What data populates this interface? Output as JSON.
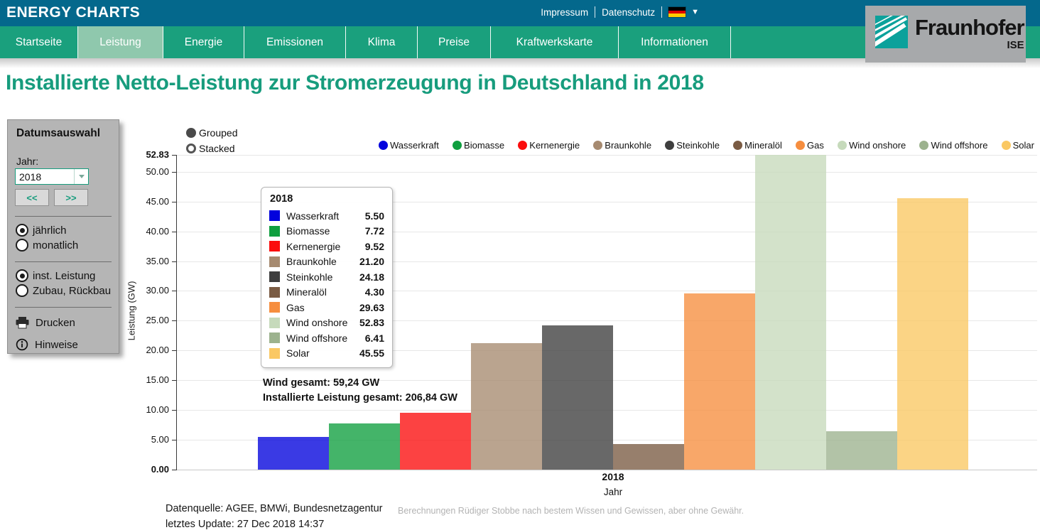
{
  "header": {
    "brand": "ENERGY CHARTS",
    "links": [
      "Impressum",
      "Datenschutz"
    ],
    "language_flag": "german-flag"
  },
  "nav": {
    "tabs": [
      {
        "label": "Startseite",
        "active": false
      },
      {
        "label": "Leistung",
        "active": true
      },
      {
        "label": "Energie",
        "active": false
      },
      {
        "label": "Emissionen",
        "active": false
      },
      {
        "label": "Klima",
        "active": false
      },
      {
        "label": "Preise",
        "active": false
      },
      {
        "label": "Kraftwerkskarte",
        "active": false
      },
      {
        "label": "Informationen",
        "active": false
      }
    ]
  },
  "logo": {
    "brand": "Fraunhofer",
    "institute": "ISE"
  },
  "page_title": "Installierte Netto-Leistung zur Stromerzeugung in Deutschland in 2018",
  "sidebar": {
    "title": "Datumsauswahl",
    "year_label": "Jahr:",
    "year_value": "2018",
    "prev_label": "<<",
    "next_label": ">>",
    "period_options": [
      {
        "label": "jährlich",
        "selected": true
      },
      {
        "label": "monatlich",
        "selected": false
      }
    ],
    "view_options": [
      {
        "label": "inst. Leistung",
        "selected": true
      },
      {
        "label": "Zubau, Rückbau",
        "selected": false
      }
    ],
    "actions": [
      {
        "label": "Drucken",
        "icon": "printer-icon"
      },
      {
        "label": "Hinweise",
        "icon": "info-icon"
      }
    ]
  },
  "chart": {
    "mode_options": [
      {
        "label": "Grouped",
        "selected": true
      },
      {
        "label": "Stacked",
        "selected": false
      }
    ],
    "y_ticks": [
      "52.83",
      "50.00",
      "45.00",
      "40.00",
      "35.00",
      "30.00",
      "25.00",
      "20.00",
      "15.00",
      "10.00",
      "5.00",
      "0.00"
    ],
    "ylabel": "Leistung (GW)",
    "x_tick_label": "2018",
    "xlabel": "Jahr",
    "tooltip_title": "2018",
    "annotations": [
      "Wind gesamt: 59,24 GW",
      "Installierte Leistung gesamt: 206,84 GW"
    ]
  },
  "chart_data": {
    "type": "bar",
    "bar_mode": "grouped",
    "title": "Installierte Netto-Leistung zur Stromerzeugung in Deutschland in 2018",
    "x_categories": [
      "2018"
    ],
    "xlabel": "Jahr",
    "ylabel": "Leistung (GW)",
    "ylim": [
      0,
      52.83
    ],
    "grid": true,
    "legend_position": "top",
    "series": [
      {
        "name": "Wasserkraft",
        "value": 5.5,
        "color": "#0202dd"
      },
      {
        "name": "Biomasse",
        "value": 7.72,
        "color": "#0f9f3f"
      },
      {
        "name": "Kernenergie",
        "value": 9.52,
        "color": "#fb0d0d"
      },
      {
        "name": "Braunkohle",
        "value": 21.2,
        "color": "#a68a70"
      },
      {
        "name": "Steinkohle",
        "value": 24.18,
        "color": "#3e3e3e"
      },
      {
        "name": "Mineralöl",
        "value": 4.3,
        "color": "#7a5b43"
      },
      {
        "name": "Gas",
        "value": 29.63,
        "color": "#f68e3f"
      },
      {
        "name": "Wind onshore",
        "value": 52.83,
        "color": "#c6dabb"
      },
      {
        "name": "Wind offshore",
        "value": 6.41,
        "color": "#9cb28e"
      },
      {
        "name": "Solar",
        "value": 45.55,
        "color": "#fac863"
      }
    ],
    "totals": {
      "wind_gesamt": "Wind gesamt: 59,24 GW",
      "installierte_leistung_gesamt": "Installierte Leistung gesamt: 206,84 GW"
    }
  },
  "footer": {
    "source_line1": "Datenquelle: AGEE, BMWi, Bundesnetzagentur",
    "source_line2": "letztes Update: 27 Dec 2018 14:37",
    "disclaimer": "Berechnungen Rüdiger Stobbe nach bestem Wissen und Gewissen, aber ohne Gewähr."
  },
  "colors": {
    "header_bg": "#04688c",
    "nav_bg": "#1aa07d",
    "nav_active": "#8fc8ad",
    "title": "#179c7d",
    "sidebar_bg": "#b5b5b5",
    "logo_bg": "#a7a9ab",
    "logo_icon": "#0ba19b"
  }
}
